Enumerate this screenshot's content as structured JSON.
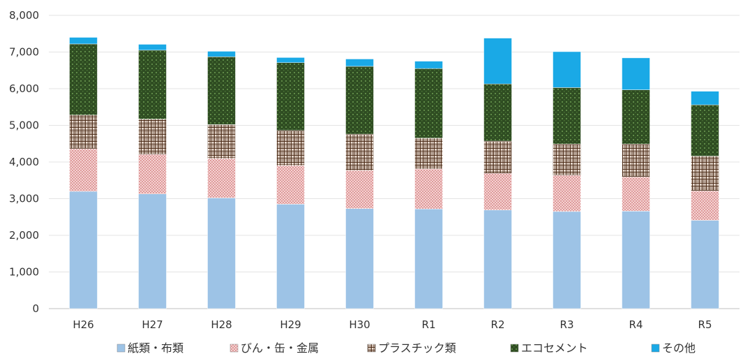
{
  "chart_data": {
    "type": "bar",
    "stacked": true,
    "categories": [
      "H26",
      "H27",
      "H28",
      "H29",
      "H30",
      "R1",
      "R2",
      "R3",
      "R4",
      "R5"
    ],
    "series": [
      {
        "name": "紙類・布類",
        "color": "#9dc3e6",
        "pattern": "solid",
        "values": [
          3200,
          3130,
          3020,
          2850,
          2730,
          2720,
          2690,
          2650,
          2660,
          2410
        ]
      },
      {
        "name": "びん・缶・金属",
        "color": "#f4c2c2",
        "pattern": "crosshatch-pink",
        "values": [
          1160,
          1080,
          1070,
          1050,
          1040,
          1090,
          1000,
          990,
          930,
          800
        ]
      },
      {
        "name": "プラスチック類",
        "color": "#7b4a2e",
        "pattern": "grid-brown",
        "values": [
          920,
          960,
          930,
          960,
          990,
          840,
          880,
          850,
          900,
          950
        ]
      },
      {
        "name": "エコセメント",
        "color": "#3b5e2b",
        "pattern": "dense-green",
        "values": [
          1940,
          1880,
          1850,
          1850,
          1850,
          1900,
          1560,
          1540,
          1480,
          1400
        ]
      },
      {
        "name": "その他",
        "color": "#1aa9e6",
        "pattern": "solid",
        "values": [
          180,
          160,
          150,
          140,
          200,
          200,
          1250,
          980,
          870,
          370
        ]
      }
    ],
    "y_ticks": [
      "0",
      "1,000",
      "2,000",
      "3,000",
      "4,000",
      "5,000",
      "6,000",
      "7,000",
      "8,000"
    ],
    "ylim": [
      0,
      8000
    ],
    "grid": true,
    "legend_position": "bottom"
  }
}
